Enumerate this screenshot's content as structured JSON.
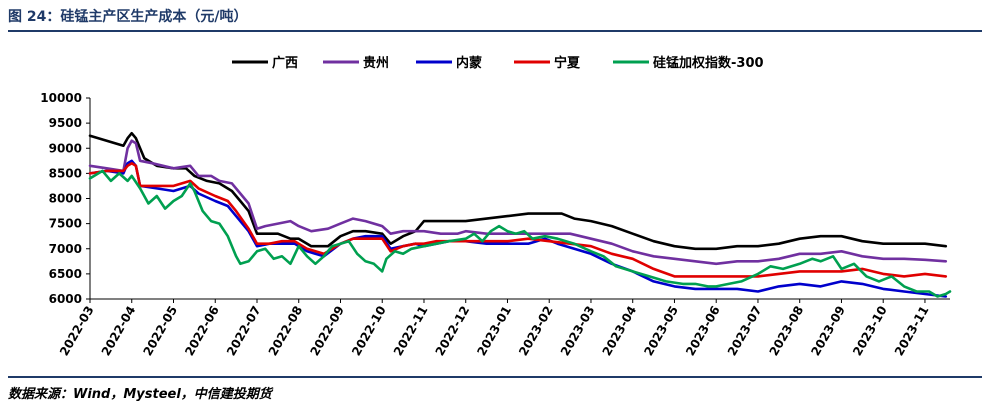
{
  "figure_title": "图 24：硅锰主产区生产成本（元/吨）",
  "source": "数据来源：Wind，Mysteel，中信建投期货",
  "chart_data": {
    "type": "line",
    "title": "",
    "xlabel": "",
    "ylabel": "",
    "ylim": [
      6000,
      10000
    ],
    "yticks": [
      6000,
      6500,
      7000,
      7500,
      8000,
      8500,
      9000,
      9500,
      10000
    ],
    "x_ticks": [
      "2022-03",
      "2022-04",
      "2022-05",
      "2022-06",
      "2022-07",
      "2022-08",
      "2022-09",
      "2022-10",
      "2022-11",
      "2022-12",
      "2023-01",
      "2023-02",
      "2023-03",
      "2023-04",
      "2023-05",
      "2023-06",
      "2023-07",
      "2023-08",
      "2023-09",
      "2023-10",
      "2023-11"
    ],
    "x_range": [
      0,
      20.6
    ],
    "legend_position": "top",
    "grid": false,
    "series": [
      {
        "name": "广西",
        "color": "#000000",
        "points": [
          [
            0,
            9250
          ],
          [
            0.4,
            9150
          ],
          [
            0.8,
            9050
          ],
          [
            0.9,
            9200
          ],
          [
            1.0,
            9300
          ],
          [
            1.1,
            9200
          ],
          [
            1.3,
            8800
          ],
          [
            1.6,
            8650
          ],
          [
            2.0,
            8600
          ],
          [
            2.3,
            8600
          ],
          [
            2.5,
            8450
          ],
          [
            2.8,
            8350
          ],
          [
            3.1,
            8300
          ],
          [
            3.4,
            8150
          ],
          [
            3.6,
            7950
          ],
          [
            3.8,
            7750
          ],
          [
            4.0,
            7300
          ],
          [
            4.2,
            7300
          ],
          [
            4.5,
            7300
          ],
          [
            4.8,
            7200
          ],
          [
            5.0,
            7200
          ],
          [
            5.3,
            7050
          ],
          [
            5.7,
            7050
          ],
          [
            6.0,
            7250
          ],
          [
            6.3,
            7350
          ],
          [
            6.6,
            7350
          ],
          [
            7.0,
            7300
          ],
          [
            7.2,
            7100
          ],
          [
            7.5,
            7250
          ],
          [
            7.8,
            7350
          ],
          [
            8.0,
            7550
          ],
          [
            8.3,
            7550
          ],
          [
            8.6,
            7550
          ],
          [
            9.0,
            7550
          ],
          [
            9.5,
            7600
          ],
          [
            10.0,
            7650
          ],
          [
            10.5,
            7700
          ],
          [
            11.0,
            7700
          ],
          [
            11.3,
            7700
          ],
          [
            11.6,
            7600
          ],
          [
            12.0,
            7550
          ],
          [
            12.5,
            7450
          ],
          [
            13.0,
            7300
          ],
          [
            13.5,
            7150
          ],
          [
            14.0,
            7050
          ],
          [
            14.5,
            7000
          ],
          [
            15.0,
            7000
          ],
          [
            15.5,
            7050
          ],
          [
            16.0,
            7050
          ],
          [
            16.5,
            7100
          ],
          [
            17.0,
            7200
          ],
          [
            17.5,
            7250
          ],
          [
            18.0,
            7250
          ],
          [
            18.5,
            7150
          ],
          [
            19.0,
            7100
          ],
          [
            19.5,
            7100
          ],
          [
            20.0,
            7100
          ],
          [
            20.5,
            7050
          ]
        ]
      },
      {
        "name": "贵州",
        "color": "#7030a0",
        "points": [
          [
            0,
            8650
          ],
          [
            0.4,
            8600
          ],
          [
            0.8,
            8550
          ],
          [
            0.9,
            9000
          ],
          [
            1.0,
            9150
          ],
          [
            1.1,
            9100
          ],
          [
            1.2,
            8750
          ],
          [
            1.5,
            8700
          ],
          [
            2.0,
            8600
          ],
          [
            2.4,
            8650
          ],
          [
            2.6,
            8450
          ],
          [
            2.9,
            8450
          ],
          [
            3.1,
            8350
          ],
          [
            3.4,
            8300
          ],
          [
            3.6,
            8100
          ],
          [
            3.8,
            7900
          ],
          [
            4.0,
            7400
          ],
          [
            4.2,
            7450
          ],
          [
            4.5,
            7500
          ],
          [
            4.8,
            7550
          ],
          [
            5.0,
            7450
          ],
          [
            5.3,
            7350
          ],
          [
            5.7,
            7400
          ],
          [
            6.0,
            7500
          ],
          [
            6.3,
            7600
          ],
          [
            6.6,
            7550
          ],
          [
            7.0,
            7450
          ],
          [
            7.2,
            7300
          ],
          [
            7.5,
            7350
          ],
          [
            7.8,
            7350
          ],
          [
            8.0,
            7350
          ],
          [
            8.4,
            7300
          ],
          [
            8.8,
            7300
          ],
          [
            9.0,
            7350
          ],
          [
            9.5,
            7300
          ],
          [
            10.0,
            7300
          ],
          [
            10.5,
            7300
          ],
          [
            11.0,
            7300
          ],
          [
            11.5,
            7300
          ],
          [
            12.0,
            7200
          ],
          [
            12.5,
            7100
          ],
          [
            13.0,
            6950
          ],
          [
            13.5,
            6850
          ],
          [
            14.0,
            6800
          ],
          [
            14.5,
            6750
          ],
          [
            15.0,
            6700
          ],
          [
            15.5,
            6750
          ],
          [
            16.0,
            6750
          ],
          [
            16.5,
            6800
          ],
          [
            17.0,
            6900
          ],
          [
            17.5,
            6900
          ],
          [
            18.0,
            6950
          ],
          [
            18.5,
            6850
          ],
          [
            19.0,
            6800
          ],
          [
            19.5,
            6800
          ],
          [
            20.0,
            6780
          ],
          [
            20.5,
            6750
          ]
        ]
      },
      {
        "name": "内蒙",
        "color": "#0000cc",
        "points": [
          [
            0,
            8500
          ],
          [
            0.4,
            8550
          ],
          [
            0.8,
            8500
          ],
          [
            0.9,
            8700
          ],
          [
            1.0,
            8750
          ],
          [
            1.1,
            8650
          ],
          [
            1.2,
            8250
          ],
          [
            1.6,
            8200
          ],
          [
            2.0,
            8150
          ],
          [
            2.4,
            8250
          ],
          [
            2.6,
            8100
          ],
          [
            3.0,
            7950
          ],
          [
            3.3,
            7850
          ],
          [
            3.5,
            7650
          ],
          [
            3.8,
            7350
          ],
          [
            4.0,
            7050
          ],
          [
            4.3,
            7100
          ],
          [
            4.6,
            7100
          ],
          [
            4.9,
            7100
          ],
          [
            5.2,
            6950
          ],
          [
            5.6,
            6850
          ],
          [
            6.0,
            7100
          ],
          [
            6.3,
            7200
          ],
          [
            6.6,
            7250
          ],
          [
            7.0,
            7250
          ],
          [
            7.2,
            7000
          ],
          [
            7.5,
            7050
          ],
          [
            7.8,
            7100
          ],
          [
            8.0,
            7050
          ],
          [
            8.3,
            7100
          ],
          [
            8.6,
            7150
          ],
          [
            9.0,
            7150
          ],
          [
            9.5,
            7100
          ],
          [
            10.0,
            7100
          ],
          [
            10.5,
            7100
          ],
          [
            10.9,
            7200
          ],
          [
            11.2,
            7100
          ],
          [
            11.6,
            7000
          ],
          [
            12.0,
            6900
          ],
          [
            12.5,
            6700
          ],
          [
            13.0,
            6550
          ],
          [
            13.5,
            6350
          ],
          [
            14.0,
            6250
          ],
          [
            14.5,
            6200
          ],
          [
            15.0,
            6200
          ],
          [
            15.5,
            6200
          ],
          [
            16.0,
            6150
          ],
          [
            16.5,
            6250
          ],
          [
            17.0,
            6300
          ],
          [
            17.5,
            6250
          ],
          [
            18.0,
            6350
          ],
          [
            18.5,
            6300
          ],
          [
            19.0,
            6200
          ],
          [
            19.5,
            6150
          ],
          [
            20.0,
            6100
          ],
          [
            20.5,
            6050
          ]
        ]
      },
      {
        "name": "宁夏",
        "color": "#e00000",
        "points": [
          [
            0,
            8500
          ],
          [
            0.4,
            8550
          ],
          [
            0.8,
            8550
          ],
          [
            0.9,
            8650
          ],
          [
            1.0,
            8700
          ],
          [
            1.1,
            8650
          ],
          [
            1.2,
            8250
          ],
          [
            1.6,
            8250
          ],
          [
            2.0,
            8250
          ],
          [
            2.4,
            8350
          ],
          [
            2.6,
            8200
          ],
          [
            3.0,
            8050
          ],
          [
            3.3,
            7950
          ],
          [
            3.5,
            7750
          ],
          [
            3.8,
            7400
          ],
          [
            4.0,
            7100
          ],
          [
            4.3,
            7100
          ],
          [
            4.6,
            7150
          ],
          [
            4.9,
            7150
          ],
          [
            5.2,
            7000
          ],
          [
            5.6,
            6900
          ],
          [
            6.0,
            7100
          ],
          [
            6.3,
            7200
          ],
          [
            6.6,
            7200
          ],
          [
            7.0,
            7200
          ],
          [
            7.2,
            6950
          ],
          [
            7.5,
            7050
          ],
          [
            7.8,
            7100
          ],
          [
            8.0,
            7100
          ],
          [
            8.3,
            7150
          ],
          [
            8.6,
            7150
          ],
          [
            9.0,
            7150
          ],
          [
            9.5,
            7150
          ],
          [
            10.0,
            7150
          ],
          [
            10.5,
            7200
          ],
          [
            11.0,
            7150
          ],
          [
            11.5,
            7100
          ],
          [
            12.0,
            7050
          ],
          [
            12.5,
            6900
          ],
          [
            13.0,
            6800
          ],
          [
            13.5,
            6600
          ],
          [
            14.0,
            6450
          ],
          [
            14.5,
            6450
          ],
          [
            15.0,
            6450
          ],
          [
            15.5,
            6450
          ],
          [
            16.0,
            6450
          ],
          [
            16.5,
            6500
          ],
          [
            17.0,
            6550
          ],
          [
            17.5,
            6550
          ],
          [
            18.0,
            6550
          ],
          [
            18.5,
            6600
          ],
          [
            19.0,
            6500
          ],
          [
            19.5,
            6450
          ],
          [
            20.0,
            6500
          ],
          [
            20.5,
            6450
          ]
        ]
      },
      {
        "name": "硅锰加权指数-300",
        "color": "#00a050",
        "points": [
          [
            0,
            8400
          ],
          [
            0.3,
            8550
          ],
          [
            0.5,
            8350
          ],
          [
            0.7,
            8500
          ],
          [
            0.9,
            8350
          ],
          [
            1.0,
            8450
          ],
          [
            1.2,
            8200
          ],
          [
            1.4,
            7900
          ],
          [
            1.6,
            8050
          ],
          [
            1.8,
            7800
          ],
          [
            2.0,
            7950
          ],
          [
            2.2,
            8050
          ],
          [
            2.4,
            8300
          ],
          [
            2.5,
            8150
          ],
          [
            2.7,
            7750
          ],
          [
            2.9,
            7550
          ],
          [
            3.1,
            7500
          ],
          [
            3.3,
            7250
          ],
          [
            3.5,
            6850
          ],
          [
            3.6,
            6700
          ],
          [
            3.8,
            6750
          ],
          [
            4.0,
            6950
          ],
          [
            4.2,
            7000
          ],
          [
            4.4,
            6800
          ],
          [
            4.6,
            6850
          ],
          [
            4.8,
            6700
          ],
          [
            5.0,
            7050
          ],
          [
            5.2,
            6850
          ],
          [
            5.4,
            6700
          ],
          [
            5.6,
            6850
          ],
          [
            5.8,
            7050
          ],
          [
            6.0,
            7100
          ],
          [
            6.2,
            7150
          ],
          [
            6.4,
            6900
          ],
          [
            6.6,
            6750
          ],
          [
            6.8,
            6700
          ],
          [
            7.0,
            6550
          ],
          [
            7.1,
            6800
          ],
          [
            7.3,
            6950
          ],
          [
            7.5,
            6900
          ],
          [
            7.7,
            7000
          ],
          [
            8.0,
            7050
          ],
          [
            8.3,
            7100
          ],
          [
            8.6,
            7150
          ],
          [
            9.0,
            7200
          ],
          [
            9.2,
            7300
          ],
          [
            9.4,
            7150
          ],
          [
            9.6,
            7350
          ],
          [
            9.8,
            7450
          ],
          [
            10.0,
            7350
          ],
          [
            10.2,
            7300
          ],
          [
            10.4,
            7350
          ],
          [
            10.6,
            7200
          ],
          [
            10.9,
            7250
          ],
          [
            11.2,
            7200
          ],
          [
            11.6,
            7100
          ],
          [
            12.0,
            6950
          ],
          [
            12.3,
            6850
          ],
          [
            12.6,
            6650
          ],
          [
            13.0,
            6550
          ],
          [
            13.4,
            6450
          ],
          [
            13.8,
            6350
          ],
          [
            14.2,
            6300
          ],
          [
            14.5,
            6300
          ],
          [
            14.8,
            6250
          ],
          [
            15.0,
            6250
          ],
          [
            15.3,
            6300
          ],
          [
            15.6,
            6350
          ],
          [
            16.0,
            6500
          ],
          [
            16.3,
            6650
          ],
          [
            16.6,
            6600
          ],
          [
            17.0,
            6700
          ],
          [
            17.3,
            6800
          ],
          [
            17.5,
            6750
          ],
          [
            17.8,
            6850
          ],
          [
            18.0,
            6600
          ],
          [
            18.3,
            6700
          ],
          [
            18.6,
            6450
          ],
          [
            18.9,
            6350
          ],
          [
            19.2,
            6450
          ],
          [
            19.5,
            6250
          ],
          [
            19.8,
            6150
          ],
          [
            20.1,
            6150
          ],
          [
            20.3,
            6050
          ],
          [
            20.5,
            6100
          ],
          [
            20.6,
            6150
          ]
        ]
      }
    ]
  }
}
